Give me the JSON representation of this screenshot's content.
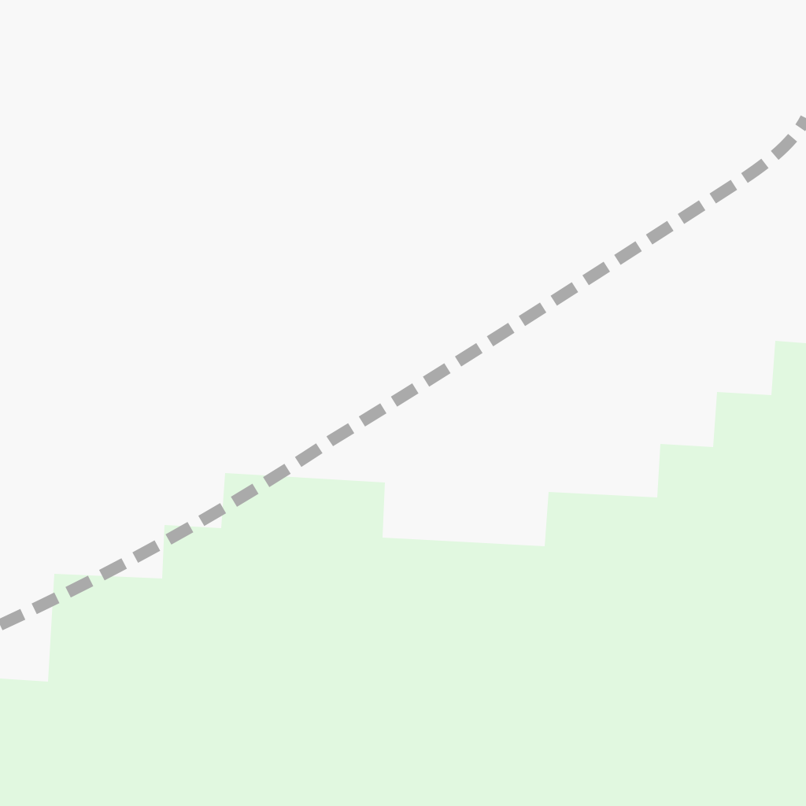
{
  "map": {
    "colors": {
      "background": "#f8f8f8",
      "green_area": "#e1f8e0",
      "path_line": "#aaaaaa"
    },
    "features": [
      {
        "kind": "green-area"
      },
      {
        "kind": "dashed-path"
      }
    ]
  }
}
